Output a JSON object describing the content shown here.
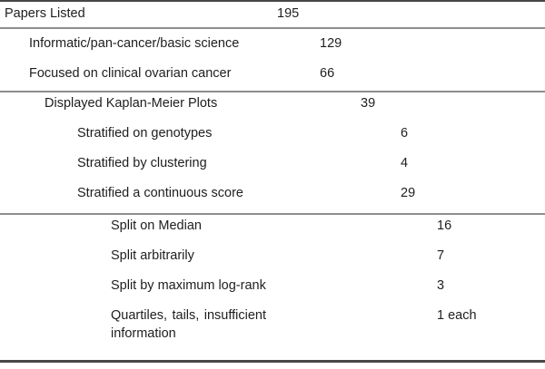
{
  "table": {
    "rows": [
      {
        "label": "Papers Listed",
        "value": "195",
        "level": 0
      },
      {
        "label": "Informatic/pan-cancer/basic science",
        "value": "129",
        "level": 1
      },
      {
        "label": "Focused on clinical ovarian cancer",
        "value": "66",
        "level": 1
      },
      {
        "label": "Displayed Kaplan-Meier Plots",
        "value": "39",
        "level": 2
      },
      {
        "label": "Stratified on genotypes",
        "value": "6",
        "level": 3
      },
      {
        "label": "Stratified by clustering",
        "value": "4",
        "level": 3
      },
      {
        "label": "Stratified a continuous score",
        "value": "29",
        "level": 3
      },
      {
        "label": "Split on Median",
        "value": "16",
        "level": 4
      },
      {
        "label": "Split arbitrarily",
        "value": "7",
        "level": 4
      },
      {
        "label": "Split by maximum log-rank",
        "value": "3",
        "level": 4
      },
      {
        "label_lines": [
          [
            "Quartiles,",
            "tails,",
            "insufficient"
          ],
          [
            "information"
          ]
        ],
        "value": "1 each",
        "level": 4
      }
    ]
  },
  "colors": {
    "text": "#1e1e1e",
    "rule_heavy": "#474747",
    "rule_light": "#8e8e8e",
    "background": "#ffffff"
  }
}
